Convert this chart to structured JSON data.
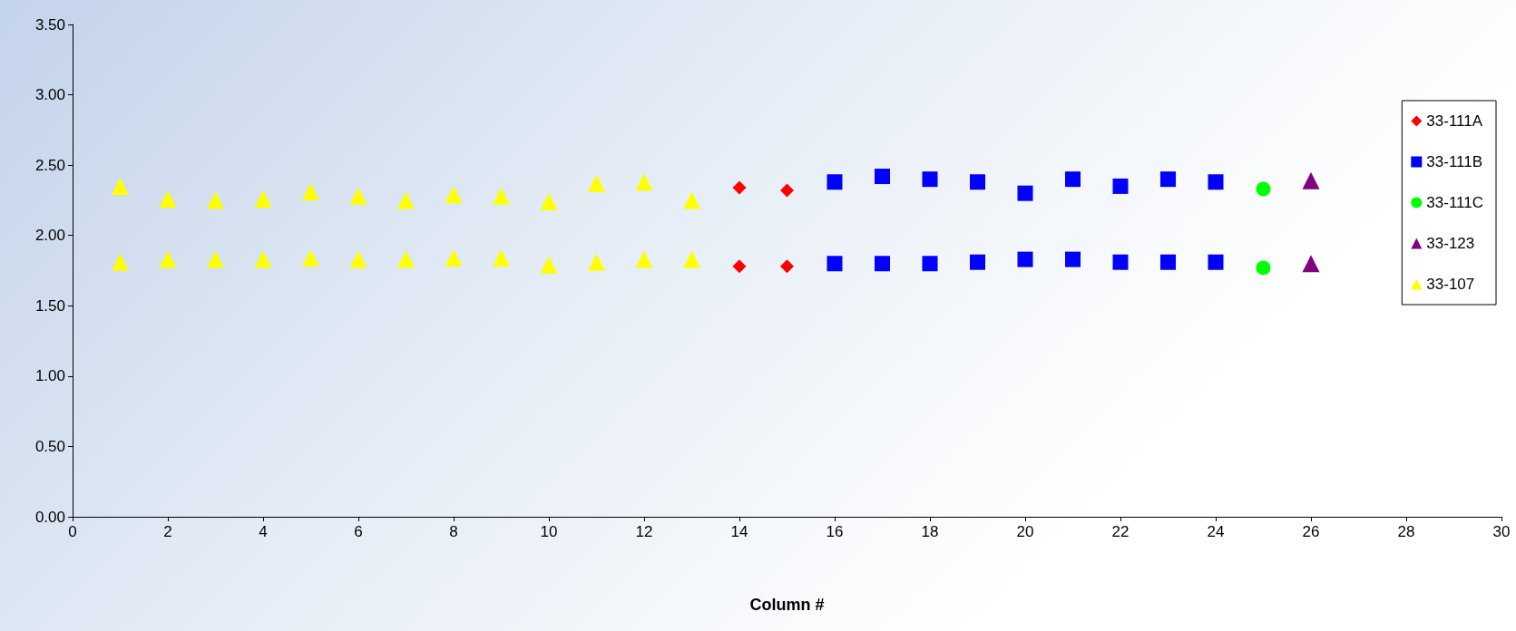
{
  "chart_data": {
    "type": "scatter",
    "xlabel": "Column #",
    "xlim": [
      0,
      30
    ],
    "xticks": [
      0,
      2,
      4,
      6,
      8,
      10,
      12,
      14,
      16,
      18,
      20,
      22,
      24,
      26,
      28,
      30
    ],
    "ylim": [
      0,
      3.5
    ],
    "yticks": [
      {
        "value": 0,
        "label": "0.00"
      },
      {
        "value": 0.5,
        "label": "0.50"
      },
      {
        "value": 1,
        "label": "1.00"
      },
      {
        "value": 1.5,
        "label": "1.50"
      },
      {
        "value": 2,
        "label": "2.00"
      },
      {
        "value": 2.5,
        "label": "2.50"
      },
      {
        "value": 3,
        "label": "3.00"
      },
      {
        "value": 3.5,
        "label": "3.50"
      }
    ],
    "grid": false,
    "legend": "right",
    "series": [
      {
        "name": "33-111A",
        "color": "#ff0000",
        "marker": "diamond",
        "x": [
          14,
          15,
          14,
          15
        ],
        "values": [
          2.34,
          2.32,
          1.78,
          1.78
        ]
      },
      {
        "name": "33-111B",
        "color": "#0000ff",
        "marker": "square",
        "x": [
          16,
          17,
          18,
          19,
          20,
          21,
          22,
          23,
          24,
          16,
          17,
          18,
          19,
          20,
          21,
          22,
          23,
          24
        ],
        "values": [
          2.38,
          2.42,
          2.4,
          2.38,
          2.3,
          2.4,
          2.35,
          2.4,
          2.38,
          1.8,
          1.8,
          1.8,
          1.81,
          1.83,
          1.83,
          1.81,
          1.81,
          1.81
        ]
      },
      {
        "name": "33-111C",
        "color": "#00ff00",
        "marker": "circle",
        "x": [
          25,
          25
        ],
        "values": [
          2.33,
          1.77
        ]
      },
      {
        "name": "33-123",
        "color": "#800080",
        "marker": "triangle",
        "x": [
          26,
          26
        ],
        "values": [
          2.39,
          1.8
        ]
      },
      {
        "name": "33-107",
        "color": "#ffff00",
        "marker": "triangle",
        "x": [
          1,
          2,
          3,
          4,
          5,
          6,
          7,
          8,
          9,
          10,
          11,
          12,
          13,
          1,
          2,
          3,
          4,
          5,
          6,
          7,
          8,
          9,
          10,
          11,
          12,
          13
        ],
        "values": [
          2.35,
          2.26,
          2.25,
          2.26,
          2.31,
          2.28,
          2.25,
          2.29,
          2.28,
          2.24,
          2.37,
          2.38,
          2.25,
          1.81,
          1.83,
          1.83,
          1.83,
          1.84,
          1.83,
          1.83,
          1.84,
          1.84,
          1.79,
          1.81,
          1.83,
          1.83
        ]
      }
    ]
  }
}
